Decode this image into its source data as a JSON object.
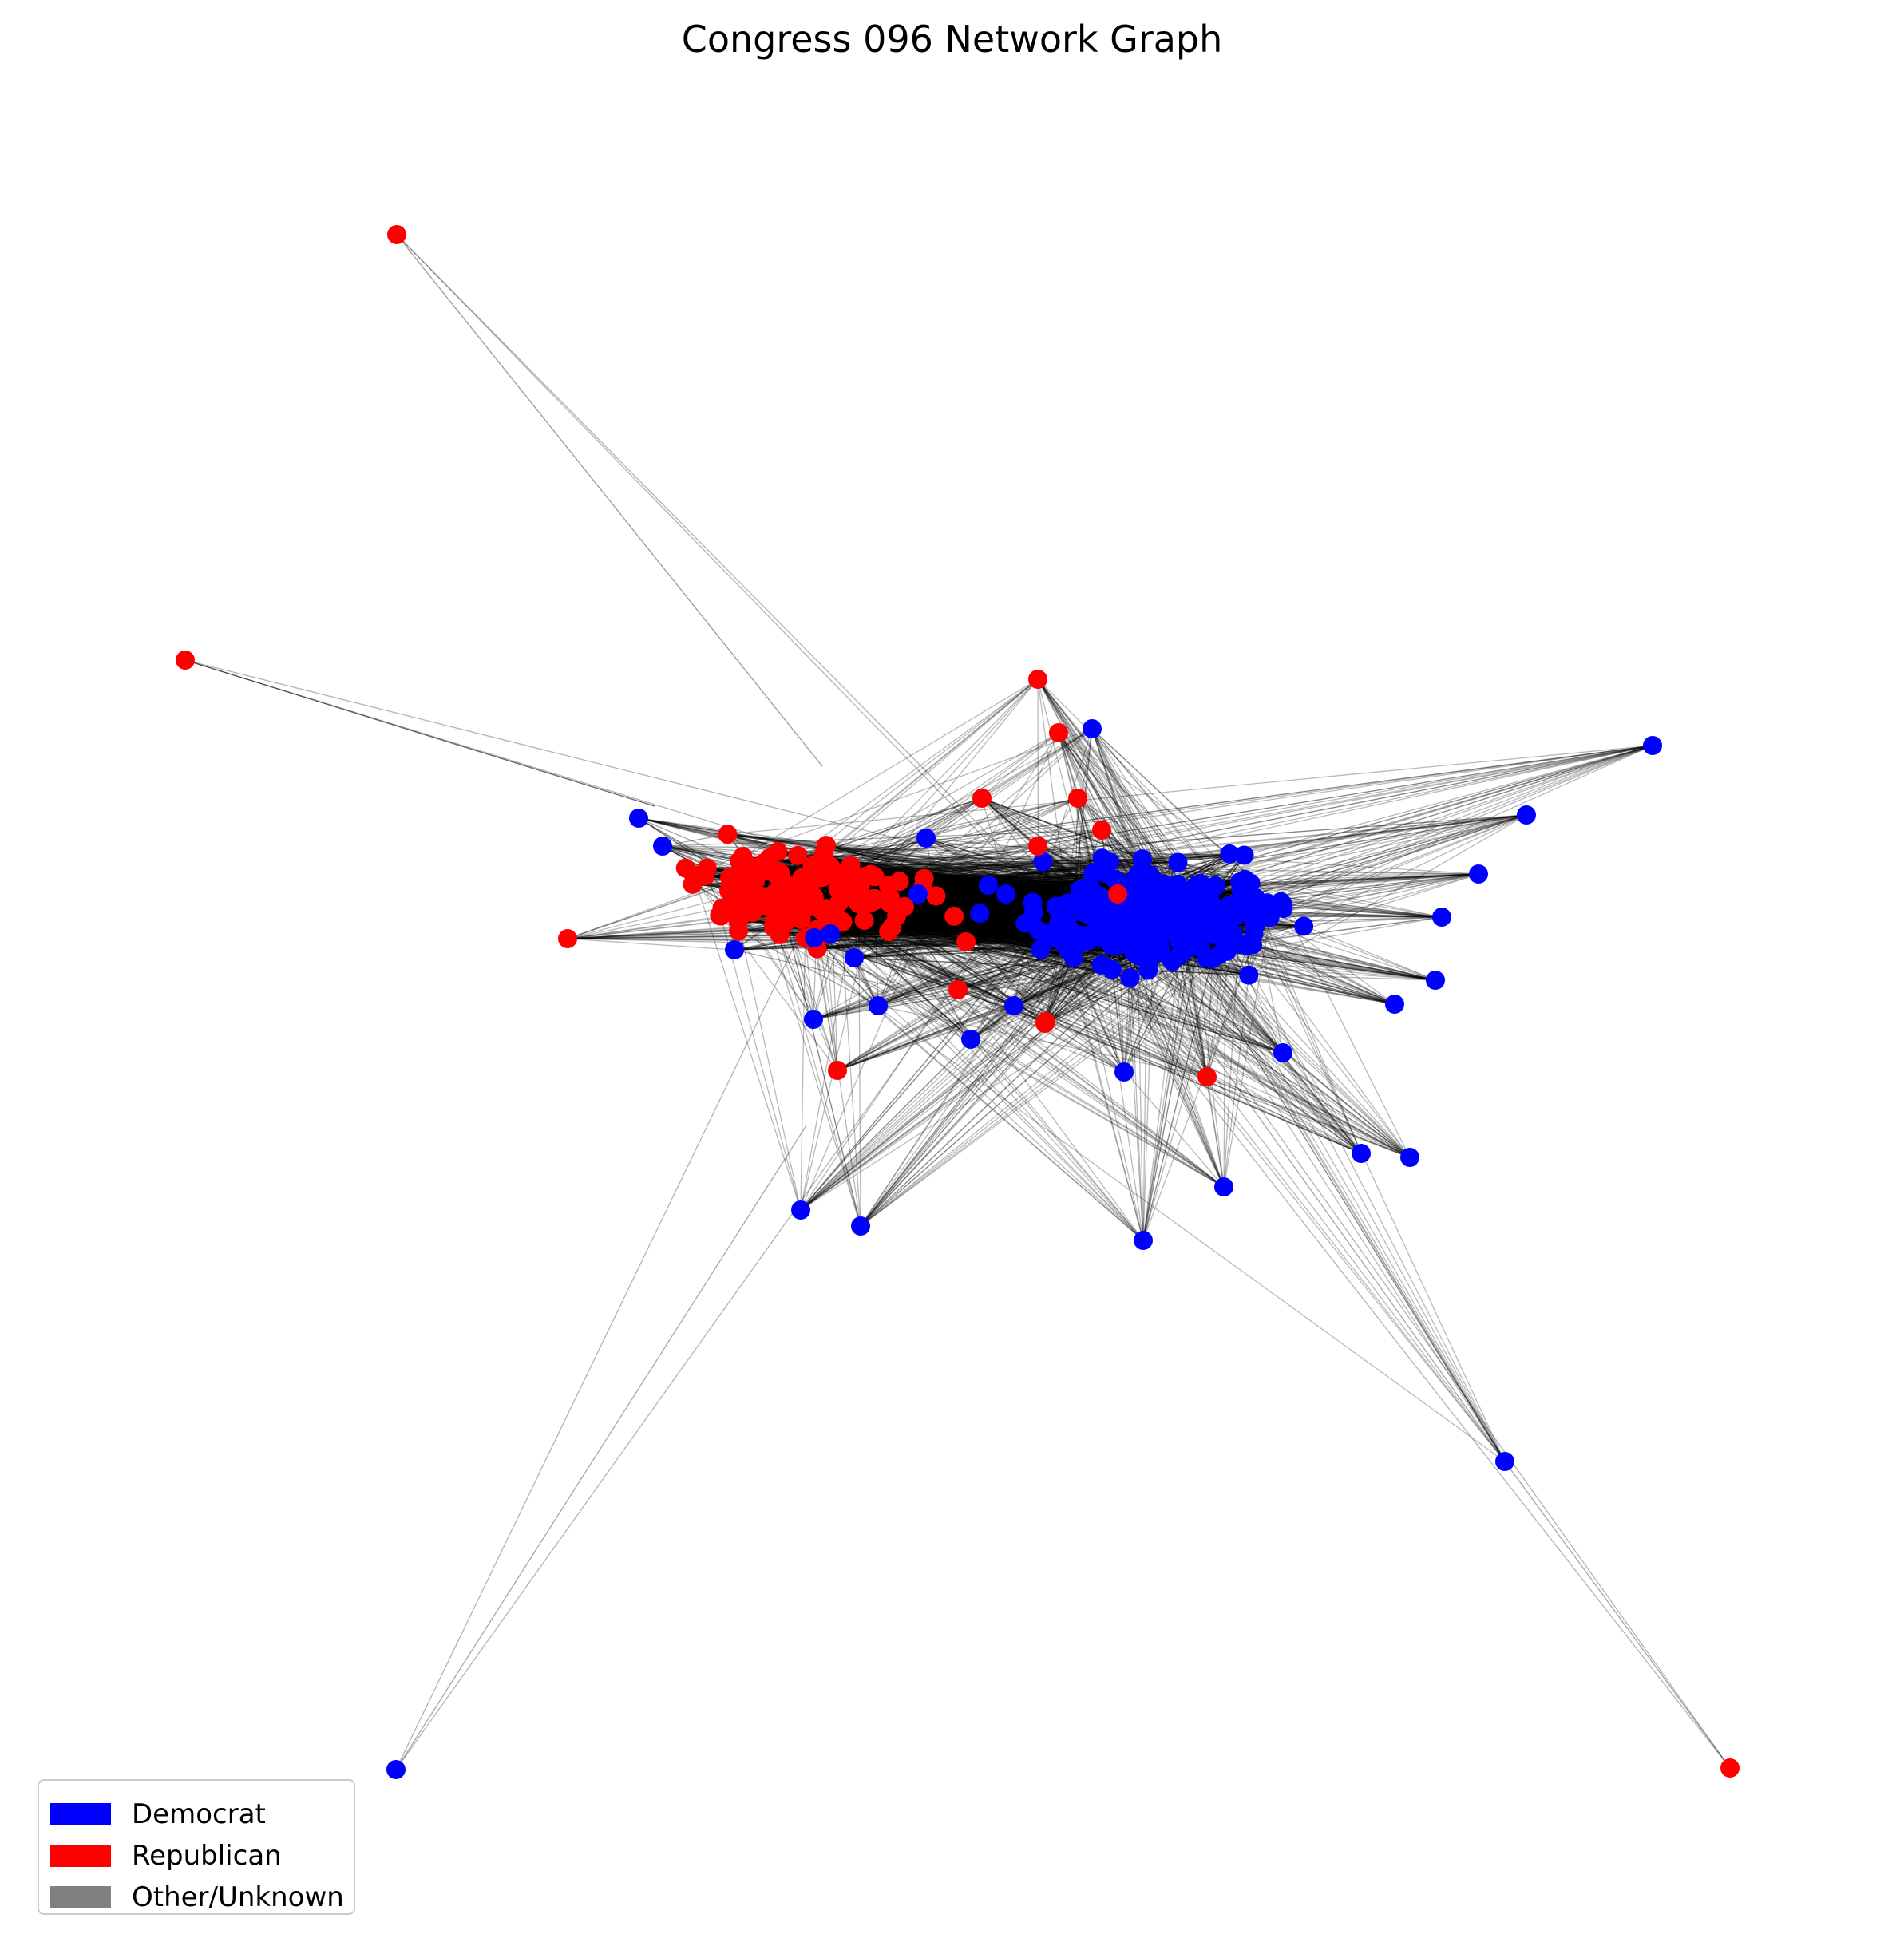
{
  "title": "Congress 096 Network Graph",
  "colors": {
    "democrat": "#0000ff",
    "republican": "#ff0000",
    "other": "#808080",
    "edge": "#000000"
  },
  "legend": [
    {
      "label": "Democrat",
      "color": "#0000ff"
    },
    {
      "label": "Republican",
      "color": "#ff0000"
    },
    {
      "label": "Other/Unknown",
      "color": "#808080"
    }
  ],
  "clusters": {
    "republican": {
      "party": "republican",
      "count": 140
    },
    "democrat": {
      "party": "democrat",
      "count": 265
    }
  }
}
